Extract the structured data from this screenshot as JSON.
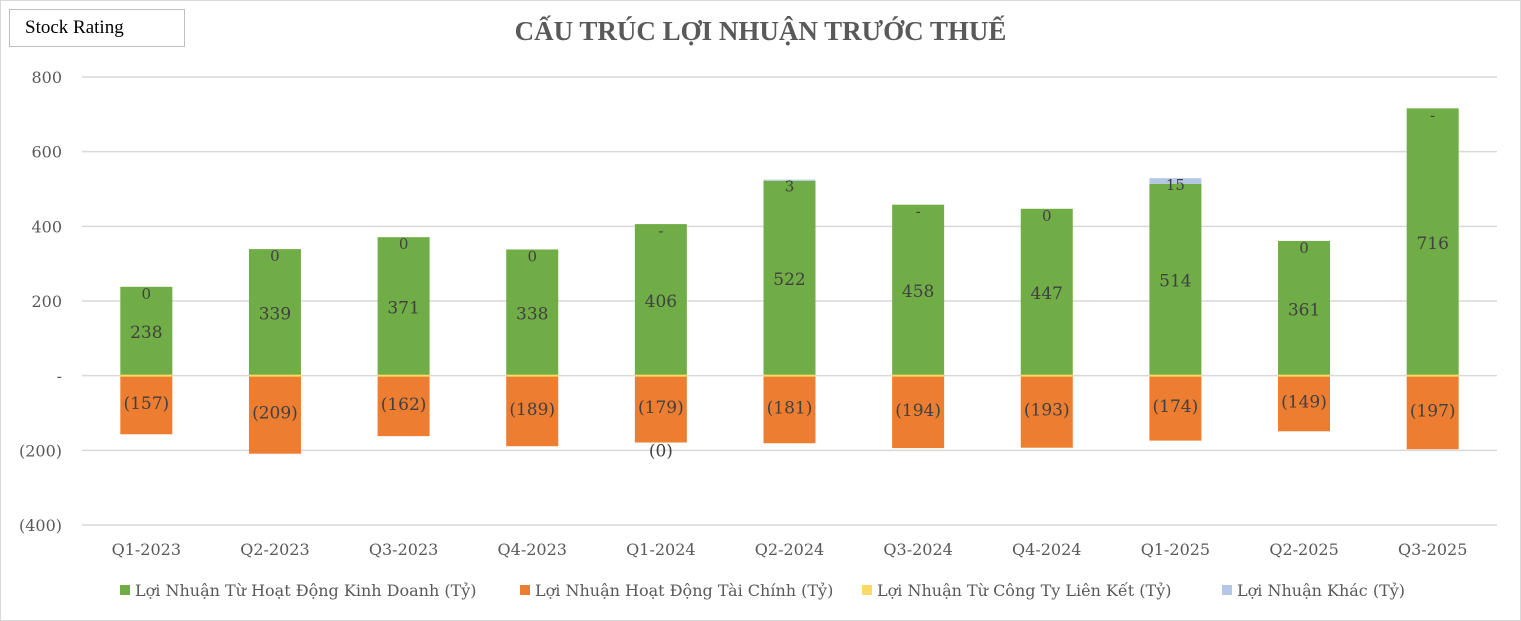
{
  "stock_button": "Stock Rating",
  "chart_data": {
    "type": "bar",
    "stacked": true,
    "title": "CẤU TRÚC LỢI NHUẬN TRƯỚC THUẾ",
    "xlabel": "",
    "ylabel": "",
    "ylim": [
      -400,
      800
    ],
    "yticks": [
      800,
      600,
      400,
      200,
      0,
      -200,
      -400
    ],
    "ytick_labels": [
      "800",
      "600",
      "400",
      "200",
      "-",
      "(200)",
      "(400)"
    ],
    "grid": true,
    "legend_position": "bottom",
    "categories": [
      "Q1-2023",
      "Q2-2023",
      "Q3-2023",
      "Q4-2023",
      "Q1-2024",
      "Q2-2024",
      "Q3-2024",
      "Q4-2024",
      "Q1-2025",
      "Q2-2025",
      "Q3-2025"
    ],
    "series": [
      {
        "name": "Lợi Nhuận Từ Hoạt Động Kinh Doanh (Tỷ)",
        "color": "#70ad47",
        "values": [
          238,
          339,
          371,
          338,
          406,
          522,
          458,
          447,
          514,
          361,
          716
        ],
        "labels": [
          "238",
          "339",
          "371",
          "338",
          "406",
          "522",
          "458",
          "447",
          "514",
          "361",
          "716"
        ]
      },
      {
        "name": "Lợi Nhuận Hoạt Động Tài Chính (Tỷ)",
        "color": "#ed7d31",
        "values": [
          -157,
          -209,
          -162,
          -189,
          -179,
          -181,
          -194,
          -193,
          -174,
          -149,
          -197
        ],
        "labels": [
          "(157)",
          "(209)",
          "(162)",
          "(189)",
          "(179)",
          "(181)",
          "(194)",
          "(193)",
          "(174)",
          "(149)",
          "(197)"
        ]
      },
      {
        "name": "Lợi Nhuận Từ Công Ty Liên Kết (Tỷ)",
        "color": "#ffd966",
        "values": [
          0,
          0,
          0,
          0,
          0,
          0,
          0,
          0,
          0,
          0,
          0
        ],
        "labels": [
          "",
          "",
          "",
          "",
          "(0)",
          "",
          "",
          "",
          "",
          "",
          ""
        ]
      },
      {
        "name": "Lợi Nhuận Khác (Tỷ)",
        "color": "#b4c7e7",
        "values": [
          0,
          0,
          0,
          0,
          0,
          3,
          0,
          0,
          15,
          0,
          0
        ],
        "labels": [
          "0",
          "0",
          "0",
          "0",
          "-",
          "3",
          "-",
          "0",
          "15",
          "0",
          "-"
        ]
      }
    ]
  }
}
